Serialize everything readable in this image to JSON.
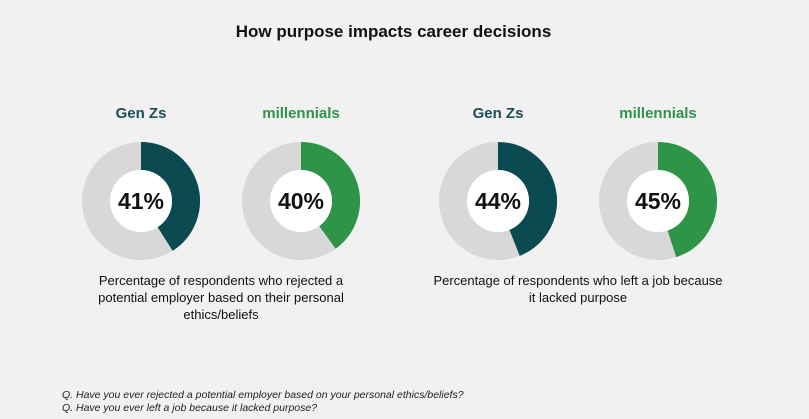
{
  "title": "How purpose impacts career decisions",
  "colors": {
    "genz": "#0c4a52",
    "millennial": "#2e9448",
    "track": "#d8d8d8",
    "center": "#ffffff",
    "genz_label": "#1d4d55",
    "millennial_label": "#2e9448"
  },
  "chart_data": [
    {
      "type": "pie",
      "caption": "Percentage of respondents who rejected a potential employer based on their personal ethics/beliefs",
      "series": [
        {
          "name": "Gen Zs",
          "value": 41,
          "label": "41%",
          "color_key": "genz"
        },
        {
          "name": "millennials",
          "value": 40,
          "label": "40%",
          "color_key": "millennial"
        }
      ]
    },
    {
      "type": "pie",
      "caption": "Percentage of respondents who left a job because it lacked purpose",
      "series": [
        {
          "name": "Gen Zs",
          "value": 44,
          "label": "44%",
          "color_key": "genz"
        },
        {
          "name": "millennials",
          "value": 45,
          "label": "45%",
          "color_key": "millennial"
        }
      ]
    }
  ],
  "footnotes": [
    "Q. Have you ever rejected a potential employer based on your personal ethics/beliefs?",
    "Q. Have you ever left a job because it lacked purpose?"
  ]
}
